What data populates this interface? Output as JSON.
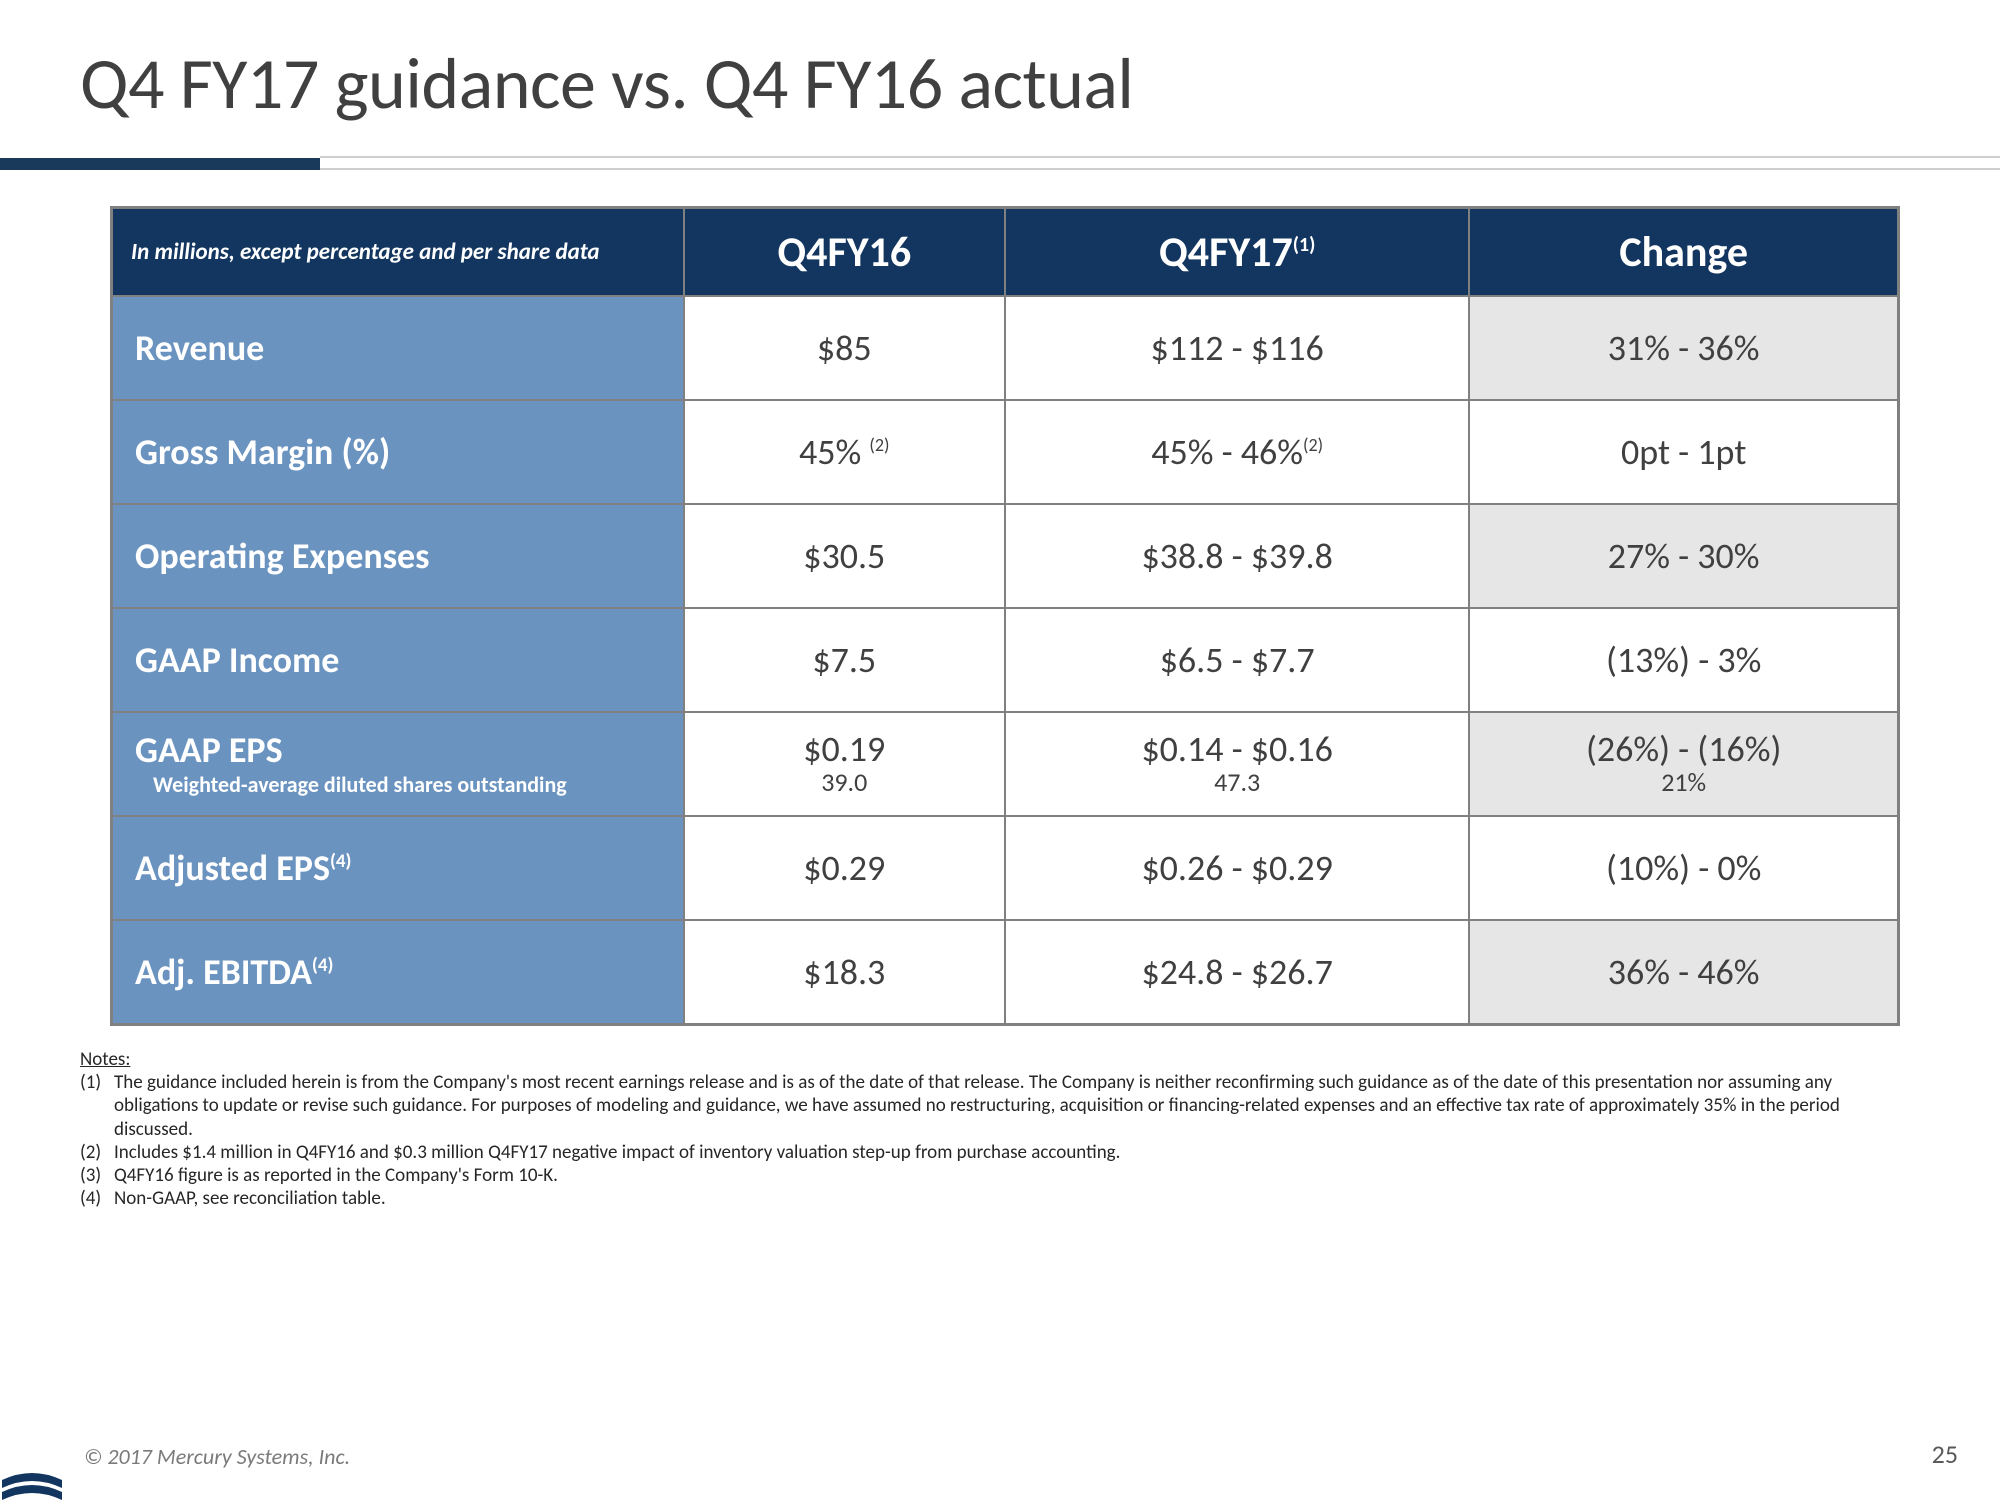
{
  "title": "Q4 FY17 guidance vs. Q4 FY16 actual",
  "colors": {
    "header_bg": "#12365f",
    "header_fg": "#ffffff",
    "rowlabel_bg": "#6a93c0",
    "rowlabel_fg": "#ffffff",
    "cell_bg": "#ffffff",
    "shade_bg": "#e6e6e6",
    "border": "#808080",
    "title_fg": "#404040"
  },
  "table": {
    "corner": "In millions, except percentage and per share data",
    "columns": [
      {
        "label": "Q4FY16",
        "sup": ""
      },
      {
        "label": "Q4FY17",
        "sup": "(1)"
      },
      {
        "label": "Change",
        "sup": ""
      }
    ],
    "rows": [
      {
        "label": "Revenue",
        "label_sup": "",
        "sub": "",
        "c1": "$85",
        "c1_sup": "",
        "c1_sub": "",
        "c2": "$112 - $116",
        "c2_sup": "",
        "c2_sub": "",
        "c3": "31% - 36%",
        "c3_sub": "",
        "shade": true
      },
      {
        "label": "Gross Margin (%)",
        "label_sup": "",
        "sub": "",
        "c1": "45% ",
        "c1_sup": "(2)",
        "c1_sub": "",
        "c2": "45% - 46%",
        "c2_sup": "(2)",
        "c2_sub": "",
        "c3": "0pt - 1pt",
        "c3_sub": "",
        "shade": false
      },
      {
        "label": "Operating Expenses",
        "label_sup": "",
        "sub": "",
        "c1": "$30.5",
        "c1_sup": "",
        "c1_sub": "",
        "c2": "$38.8 - $39.8",
        "c2_sup": "",
        "c2_sub": "",
        "c3": "27% - 30%",
        "c3_sub": "",
        "shade": true
      },
      {
        "label": "GAAP Income",
        "label_sup": "",
        "sub": "",
        "c1": "$7.5",
        "c1_sup": "",
        "c1_sub": "",
        "c2": "$6.5 - $7.7",
        "c2_sup": "",
        "c2_sub": "",
        "c3": "(13%) - 3%",
        "c3_sub": "",
        "shade": false
      },
      {
        "label": "GAAP EPS",
        "label_sup": "",
        "sub": "Weighted-average diluted shares outstanding",
        "c1": "$0.19",
        "c1_sup": "",
        "c1_sub": "39.0",
        "c2": "$0.14 - $0.16",
        "c2_sup": "",
        "c2_sub": "47.3",
        "c3": "(26%) - (16%)",
        "c3_sub": "21%",
        "shade": true
      },
      {
        "label": "Adjusted EPS",
        "label_sup": "(4)",
        "sub": "",
        "c1": "$0.29",
        "c1_sup": "",
        "c1_sub": "",
        "c2": "$0.26 - $0.29",
        "c2_sup": "",
        "c2_sub": "",
        "c3": "(10%) - 0%",
        "c3_sub": "",
        "shade": false
      },
      {
        "label": "Adj. EBITDA",
        "label_sup": "(4)",
        "sub": "",
        "c1": "$18.3",
        "c1_sup": "",
        "c1_sub": "",
        "c2": "$24.8 - $26.7",
        "c2_sup": "",
        "c2_sub": "",
        "c3": "36% - 46%",
        "c3_sub": "",
        "shade": true
      }
    ]
  },
  "notes": {
    "heading": "Notes:",
    "items": [
      {
        "num": "(1)",
        "text": "The guidance included herein is from the Company's most recent earnings release and is as of the date of that release. The Company is neither reconfirming such guidance as of the date of this presentation nor assuming any obligations to update or revise such guidance. For purposes of modeling and guidance, we have assumed no restructuring, acquisition or financing-related expenses and an effective tax rate of approximately 35% in the period discussed."
      },
      {
        "num": "(2)",
        "text": "Includes $1.4 million in Q4FY16 and $0.3 million Q4FY17 negative impact of inventory valuation step-up from purchase accounting."
      },
      {
        "num": "(3)",
        "text": "Q4FY16 figure is as reported in the Company's Form 10-K."
      },
      {
        "num": "(4)",
        "text": "Non-GAAP, see reconciliation table."
      }
    ]
  },
  "footer": {
    "copyright": "© 2017 Mercury Systems, Inc.",
    "page": "25"
  }
}
